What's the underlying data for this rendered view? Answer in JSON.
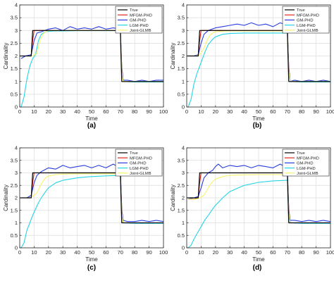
{
  "chart_data": [
    {
      "type": "line",
      "panel_label": "(a)",
      "xlabel": "Time",
      "ylabel": "Cardinality",
      "xlim": [
        0,
        100
      ],
      "ylim": [
        0,
        4
      ],
      "xticks": [
        "0",
        "10",
        "20",
        "30",
        "40",
        "50",
        "60",
        "70",
        "80",
        "90",
        "100"
      ],
      "yticks": [
        "0",
        "0.5",
        "1",
        "1.5",
        "2",
        "2.5",
        "3",
        "3.5",
        "4"
      ],
      "grid": true,
      "legend_position": "top-right",
      "series": [
        {
          "name": "True",
          "color": "#000000",
          "x": [
            0,
            8,
            9,
            70,
            71,
            100
          ],
          "y": [
            2,
            2,
            3,
            3,
            1,
            1
          ]
        },
        {
          "name": "MFGM-PHD",
          "color": "#e4271b",
          "x": [
            1,
            5,
            8,
            9,
            10,
            15,
            20,
            30,
            40,
            50,
            60,
            70,
            71,
            72,
            80,
            90,
            100
          ],
          "y": [
            2,
            2,
            2,
            2.6,
            3,
            3,
            3,
            3,
            3,
            3,
            3,
            3,
            1.6,
            1,
            1,
            1,
            1
          ]
        },
        {
          "name": "GM-PHD",
          "color": "#2a3de0",
          "x": [
            1,
            4,
            8,
            10,
            12,
            15,
            20,
            25,
            30,
            35,
            40,
            45,
            50,
            55,
            60,
            65,
            70,
            71,
            72,
            75,
            80,
            85,
            90,
            95,
            100
          ],
          "y": [
            1.9,
            2,
            2.05,
            2.6,
            2.9,
            2.95,
            3.05,
            3.1,
            3,
            3.15,
            3.05,
            3.1,
            3.05,
            3.15,
            3.05,
            3.1,
            3.05,
            1.5,
            1.05,
            1.05,
            1,
            1.05,
            1,
            1.05,
            1.05
          ]
        },
        {
          "name": "LGM-PHD",
          "color": "#25d4e6",
          "x": [
            1,
            3,
            5,
            7,
            9,
            11,
            13,
            15,
            18,
            20,
            25,
            30,
            40,
            50,
            60,
            70,
            71,
            72,
            80,
            90,
            100
          ],
          "y": [
            0,
            0.4,
            1.1,
            1.6,
            1.9,
            2.05,
            2.6,
            2.85,
            2.95,
            2.97,
            2.98,
            2.98,
            2.99,
            2.99,
            2.99,
            2.99,
            1.3,
            1,
            0.98,
            0.98,
            0.98
          ]
        },
        {
          "name": "Joint-GLMB",
          "color": "#f7f36a",
          "x": [
            1,
            6,
            9,
            12,
            14,
            16,
            18,
            20,
            25,
            30,
            40,
            50,
            60,
            70,
            71,
            72,
            80,
            90,
            100
          ],
          "y": [
            2,
            2,
            2,
            2.1,
            2.6,
            2.85,
            2.95,
            3,
            3,
            3,
            3,
            3,
            3,
            3,
            1.4,
            1,
            1,
            1,
            1
          ]
        }
      ]
    },
    {
      "type": "line",
      "panel_label": "(b)",
      "xlabel": "Time",
      "ylabel": "Cardinality",
      "xlim": [
        0,
        100
      ],
      "ylim": [
        0,
        4
      ],
      "xticks": [
        "0",
        "10",
        "20",
        "30",
        "40",
        "50",
        "60",
        "70",
        "80",
        "90",
        "100"
      ],
      "yticks": [
        "0",
        "0.5",
        "1",
        "1.5",
        "2",
        "2.5",
        "3",
        "3.5",
        "4"
      ],
      "grid": true,
      "legend_position": "top-right",
      "series": [
        {
          "name": "True",
          "color": "#000000",
          "x": [
            0,
            8,
            9,
            70,
            71,
            100
          ],
          "y": [
            2,
            2,
            3,
            3,
            1,
            1
          ]
        },
        {
          "name": "MFGM-PHD",
          "color": "#e4271b",
          "x": [
            1,
            5,
            8,
            9,
            10,
            15,
            20,
            30,
            40,
            50,
            60,
            70,
            71,
            72,
            80,
            90,
            100
          ],
          "y": [
            2,
            2,
            2,
            2.6,
            3,
            3,
            3,
            3,
            3,
            3,
            3,
            3,
            1.6,
            1,
            1,
            1,
            1
          ]
        },
        {
          "name": "GM-PHD",
          "color": "#2a3de0",
          "x": [
            1,
            5,
            8,
            10,
            12,
            15,
            20,
            25,
            30,
            35,
            40,
            45,
            50,
            55,
            60,
            65,
            70,
            71,
            72,
            75,
            80,
            85,
            90,
            95,
            100
          ],
          "y": [
            2,
            2,
            2.05,
            2.5,
            2.85,
            3,
            3.1,
            3.15,
            3.2,
            3.25,
            3.2,
            3.3,
            3.2,
            3.25,
            3.15,
            3.3,
            3.2,
            1.5,
            1,
            1.05,
            1,
            1.05,
            1,
            1.05,
            1
          ]
        },
        {
          "name": "LGM-PHD",
          "color": "#25d4e6",
          "x": [
            1,
            3,
            5,
            7,
            9,
            11,
            13,
            15,
            18,
            20,
            25,
            30,
            40,
            50,
            60,
            70,
            71,
            72,
            80,
            90,
            100
          ],
          "y": [
            0,
            0.3,
            0.9,
            1.3,
            1.6,
            1.9,
            2.2,
            2.45,
            2.65,
            2.75,
            2.85,
            2.88,
            2.9,
            2.9,
            2.9,
            2.9,
            1.3,
            1,
            0.98,
            0.98,
            0.98
          ]
        },
        {
          "name": "Joint-GLMB",
          "color": "#f7f36a",
          "x": [
            1,
            6,
            9,
            12,
            14,
            16,
            18,
            20,
            25,
            30,
            40,
            50,
            60,
            70,
            71,
            72,
            80,
            90,
            100
          ],
          "y": [
            2,
            2,
            2.05,
            2.3,
            2.6,
            2.8,
            2.9,
            2.95,
            2.97,
            2.98,
            2.98,
            2.98,
            2.98,
            2.98,
            1.4,
            1,
            1,
            1,
            1
          ]
        }
      ]
    },
    {
      "type": "line",
      "panel_label": "(c)",
      "xlabel": "Time",
      "ylabel": "Cardinality",
      "xlim": [
        0,
        100
      ],
      "ylim": [
        0,
        4
      ],
      "xticks": [
        "0",
        "10",
        "20",
        "30",
        "40",
        "50",
        "60",
        "70",
        "80",
        "90",
        "100"
      ],
      "yticks": [
        "0",
        "0.5",
        "1",
        "1.5",
        "2",
        "2.5",
        "3",
        "3.5",
        "4"
      ],
      "grid": true,
      "legend_position": "top-right",
      "series": [
        {
          "name": "True",
          "color": "#000000",
          "x": [
            0,
            8,
            9,
            70,
            71,
            100
          ],
          "y": [
            2,
            2,
            3,
            3,
            1,
            1
          ]
        },
        {
          "name": "MFGM-PHD",
          "color": "#e4271b",
          "x": [
            1,
            5,
            8,
            9,
            10,
            15,
            20,
            30,
            40,
            50,
            60,
            70,
            71,
            72,
            80,
            90,
            100
          ],
          "y": [
            2,
            2,
            2,
            2.6,
            3,
            3,
            3,
            3,
            3,
            3,
            3,
            3,
            1.6,
            1,
            1,
            1,
            1
          ]
        },
        {
          "name": "GM-PHD",
          "color": "#2a3de0",
          "x": [
            1,
            5,
            8,
            10,
            12,
            15,
            20,
            25,
            30,
            35,
            40,
            45,
            50,
            55,
            60,
            65,
            70,
            71,
            72,
            75,
            80,
            85,
            90,
            95,
            100
          ],
          "y": [
            2,
            2,
            2.1,
            2.6,
            2.9,
            3.05,
            3.2,
            3.15,
            3.3,
            3.2,
            3.25,
            3.3,
            3.2,
            3.3,
            3.2,
            3.35,
            3.2,
            1.5,
            1.1,
            1.05,
            1.05,
            1.1,
            1.05,
            1.1,
            1.05
          ]
        },
        {
          "name": "LGM-PHD",
          "color": "#25d4e6",
          "x": [
            1,
            3,
            5,
            7,
            9,
            11,
            13,
            15,
            18,
            20,
            25,
            30,
            40,
            50,
            60,
            70,
            71,
            72,
            80,
            90,
            100
          ],
          "y": [
            0,
            0.2,
            0.7,
            1.0,
            1.3,
            1.55,
            1.8,
            2.0,
            2.25,
            2.4,
            2.6,
            2.7,
            2.8,
            2.85,
            2.88,
            2.9,
            1.3,
            1,
            0.98,
            0.98,
            0.98
          ]
        },
        {
          "name": "Joint-GLMB",
          "color": "#f7f36a",
          "x": [
            1,
            6,
            9,
            12,
            14,
            16,
            18,
            20,
            25,
            30,
            40,
            50,
            60,
            70,
            71,
            72,
            80,
            90,
            100
          ],
          "y": [
            2,
            2,
            2.05,
            2.2,
            2.45,
            2.65,
            2.8,
            2.88,
            2.93,
            2.95,
            2.96,
            2.96,
            2.96,
            2.96,
            1.4,
            1,
            1,
            1,
            1
          ]
        }
      ]
    },
    {
      "type": "line",
      "panel_label": "(d)",
      "xlabel": "Time",
      "ylabel": "Cardinality",
      "xlim": [
        0,
        100
      ],
      "ylim": [
        0,
        4
      ],
      "xticks": [
        "0",
        "10",
        "20",
        "30",
        "40",
        "50",
        "60",
        "70",
        "80",
        "90",
        "100"
      ],
      "yticks": [
        "0",
        "0.5",
        "1",
        "1.5",
        "2",
        "2.5",
        "3",
        "3.5",
        "4"
      ],
      "grid": true,
      "legend_position": "top-right",
      "series": [
        {
          "name": "True",
          "color": "#000000",
          "x": [
            0,
            8,
            9,
            70,
            71,
            100
          ],
          "y": [
            2,
            2,
            3,
            3,
            1,
            1
          ]
        },
        {
          "name": "MFGM-PHD",
          "color": "#e4271b",
          "x": [
            1,
            5,
            8,
            9,
            10,
            15,
            20,
            30,
            40,
            50,
            60,
            70,
            71,
            72,
            80,
            90,
            100
          ],
          "y": [
            1.95,
            1.95,
            2,
            2.6,
            3,
            3,
            3,
            3,
            3,
            3,
            3,
            3,
            1.6,
            1,
            1,
            1,
            1
          ]
        },
        {
          "name": "GM-PHD",
          "color": "#2a3de0",
          "x": [
            1,
            5,
            8,
            10,
            12,
            15,
            18,
            20,
            22,
            25,
            30,
            35,
            40,
            45,
            50,
            55,
            60,
            65,
            70,
            71,
            72,
            75,
            80,
            85,
            90,
            95,
            100
          ],
          "y": [
            1.95,
            2,
            2.05,
            2.4,
            2.8,
            3.0,
            3.1,
            3.25,
            3.35,
            3.2,
            3.3,
            3.25,
            3.3,
            3.2,
            3.3,
            3.25,
            3.2,
            3.35,
            3.2,
            1.5,
            1.1,
            1.1,
            1.05,
            1.1,
            1.05,
            1.1,
            1.05
          ]
        },
        {
          "name": "LGM-PHD",
          "color": "#25d4e6",
          "x": [
            1,
            3,
            5,
            7,
            9,
            11,
            13,
            15,
            18,
            20,
            25,
            30,
            40,
            50,
            60,
            70,
            71,
            72,
            80,
            90,
            100
          ],
          "y": [
            0,
            0.1,
            0.35,
            0.55,
            0.75,
            0.95,
            1.15,
            1.3,
            1.55,
            1.7,
            2.0,
            2.25,
            2.5,
            2.62,
            2.68,
            2.7,
            1.2,
            1,
            0.98,
            0.98,
            0.98
          ]
        },
        {
          "name": "Joint-GLMB",
          "color": "#f7f36a",
          "x": [
            1,
            6,
            9,
            12,
            14,
            16,
            18,
            20,
            25,
            30,
            40,
            50,
            60,
            70,
            71,
            72,
            80,
            90,
            100
          ],
          "y": [
            1.95,
            1.95,
            2,
            2.1,
            2.3,
            2.5,
            2.65,
            2.75,
            2.85,
            2.9,
            2.92,
            2.93,
            2.93,
            2.93,
            1.4,
            1,
            1,
            1,
            1
          ]
        }
      ]
    }
  ]
}
